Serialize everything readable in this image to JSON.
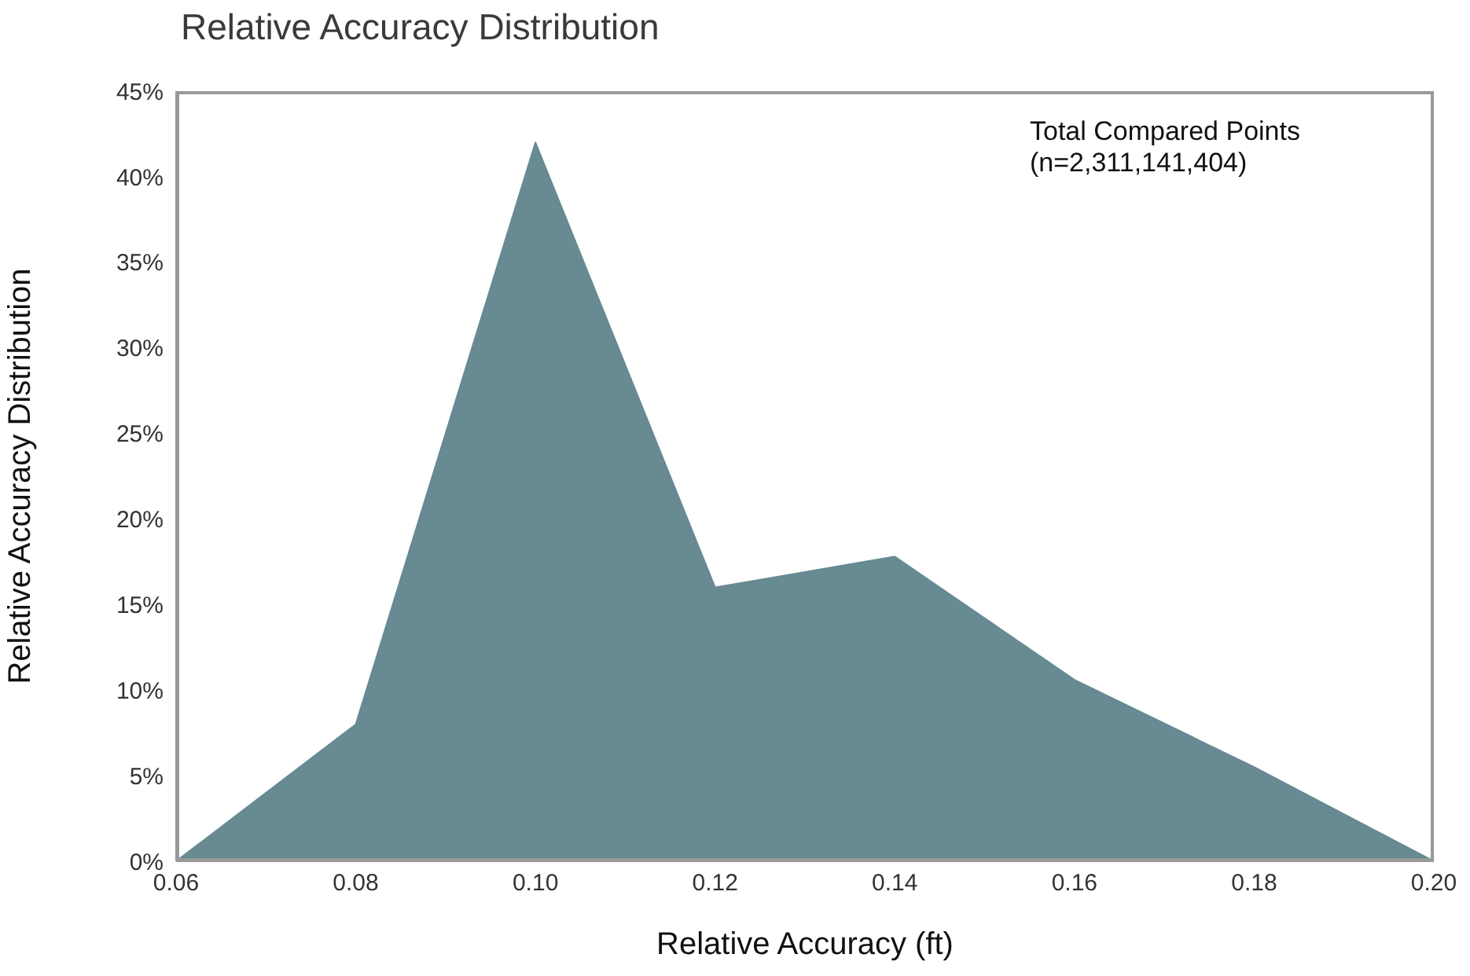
{
  "chart_data": {
    "type": "area",
    "title": "Relative Accuracy Distribution",
    "xlabel": "Relative Accuracy (ft)",
    "ylabel": "Relative Accuracy Distribution",
    "annotations": [
      "Total Compared Points",
      "(n=2,311,141,404)"
    ],
    "x": [
      0.06,
      0.08,
      0.1,
      0.12,
      0.14,
      0.16,
      0.18,
      0.2
    ],
    "series": [
      {
        "color": "#678a93",
        "values": [
          0,
          8,
          42,
          16,
          17.8,
          10.6,
          5.5,
          0
        ]
      }
    ],
    "xlim": [
      0.06,
      0.2
    ],
    "xticks": [
      {
        "value": 0.06,
        "label": "0.06"
      },
      {
        "value": 0.08,
        "label": "0.08"
      },
      {
        "value": 0.1,
        "label": "0.10"
      },
      {
        "value": 0.12,
        "label": "0.12"
      },
      {
        "value": 0.14,
        "label": "0.14"
      },
      {
        "value": 0.16,
        "label": "0.16"
      },
      {
        "value": 0.18,
        "label": "0.18"
      },
      {
        "value": 0.2,
        "label": "0.20"
      }
    ],
    "ylim": [
      0,
      45
    ],
    "yticks": [
      {
        "value": 0,
        "label": "0%"
      },
      {
        "value": 5,
        "label": "5%"
      },
      {
        "value": 10,
        "label": "10%"
      },
      {
        "value": 15,
        "label": "15%"
      },
      {
        "value": 20,
        "label": "20%"
      },
      {
        "value": 25,
        "label": "25%"
      },
      {
        "value": 30,
        "label": "30%"
      },
      {
        "value": 35,
        "label": "35%"
      },
      {
        "value": 40,
        "label": "40%"
      },
      {
        "value": 45,
        "label": "45%"
      }
    ],
    "grid": false,
    "legend": false
  }
}
